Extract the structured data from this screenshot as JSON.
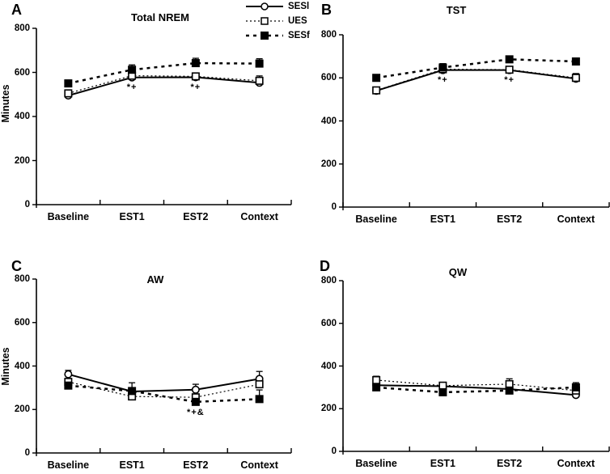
{
  "figure": {
    "background": "#ffffff",
    "ink_color": "#000000",
    "legend_position": "top-center"
  },
  "chart_data": [
    {
      "type": "line",
      "panel": "A",
      "title": "Total NREM",
      "ylabel": "Minutes",
      "ylim": [
        0,
        800
      ],
      "yticks": [
        0,
        200,
        400,
        600,
        800
      ],
      "categories": [
        "Baseline",
        "EST1",
        "EST2",
        "Context"
      ],
      "grid": false,
      "series": [
        {
          "name": "SESl",
          "marker": "open-circle",
          "line": "solid",
          "values": [
            495,
            577,
            578,
            553
          ],
          "errors": [
            10,
            10,
            8,
            18
          ]
        },
        {
          "name": "UES",
          "marker": "open-square",
          "line": "dotted",
          "values": [
            505,
            585,
            582,
            562
          ],
          "errors": [
            12,
            10,
            12,
            22
          ]
        },
        {
          "name": "SESf",
          "marker": "filled-square",
          "line": "dashed",
          "values": [
            550,
            612,
            642,
            640
          ],
          "errors": [
            15,
            22,
            22,
            22
          ]
        }
      ],
      "annotations": [
        {
          "text": "*+",
          "category": "EST1",
          "y": 533
        },
        {
          "text": "*+",
          "category": "EST2",
          "y": 533
        }
      ]
    },
    {
      "type": "line",
      "panel": "B",
      "title": "TST",
      "ylabel": "",
      "ylim": [
        0,
        800
      ],
      "yticks": [
        0,
        200,
        400,
        600,
        800
      ],
      "categories": [
        "Baseline",
        "EST1",
        "EST2",
        "Context"
      ],
      "grid": false,
      "series": [
        {
          "name": "SESl",
          "marker": "open-circle",
          "line": "solid",
          "values": [
            540,
            636,
            636,
            596
          ],
          "errors": [
            12,
            15,
            10,
            15
          ]
        },
        {
          "name": "UES",
          "marker": "open-square",
          "line": "dotted",
          "values": [
            542,
            640,
            638,
            600
          ],
          "errors": [
            15,
            18,
            12,
            20
          ]
        },
        {
          "name": "SESf",
          "marker": "filled-square",
          "line": "dashed",
          "values": [
            600,
            648,
            686,
            676
          ],
          "errors": [
            15,
            18,
            15,
            16
          ]
        }
      ],
      "annotations": [
        {
          "text": "*+",
          "category": "EST1",
          "y": 588
        },
        {
          "text": "*+",
          "category": "EST2",
          "y": 588
        }
      ]
    },
    {
      "type": "line",
      "panel": "C",
      "title": "AW",
      "ylabel": "Minutes",
      "ylim": [
        0,
        800
      ],
      "yticks": [
        0,
        200,
        400,
        600,
        800
      ],
      "categories": [
        "Baseline",
        "EST1",
        "EST2",
        "Context"
      ],
      "grid": false,
      "series": [
        {
          "name": "SESl",
          "marker": "open-circle",
          "line": "solid",
          "values": [
            362,
            283,
            291,
            341
          ],
          "errors": [
            18,
            12,
            25,
            34
          ]
        },
        {
          "name": "UES",
          "marker": "open-square",
          "line": "dotted",
          "values": [
            327,
            260,
            256,
            316
          ],
          "errors": [
            12,
            12,
            12,
            25
          ]
        },
        {
          "name": "SESf",
          "marker": "filled-square",
          "line": "dashed",
          "values": [
            310,
            285,
            235,
            248
          ],
          "errors": [
            15,
            38,
            20,
            42
          ]
        }
      ],
      "annotations": [
        {
          "text": "*+&",
          "category": "EST2",
          "y": 186
        }
      ]
    },
    {
      "type": "line",
      "panel": "D",
      "title": "QW",
      "ylabel": "",
      "ylim": [
        0,
        800
      ],
      "yticks": [
        0,
        200,
        400,
        600,
        800
      ],
      "categories": [
        "Baseline",
        "EST1",
        "EST2",
        "Context"
      ],
      "grid": false,
      "series": [
        {
          "name": "SESl",
          "marker": "open-circle",
          "line": "solid",
          "values": [
            310,
            305,
            292,
            264
          ],
          "errors": [
            12,
            12,
            12,
            12
          ]
        },
        {
          "name": "UES",
          "marker": "open-square",
          "line": "dotted",
          "values": [
            334,
            308,
            315,
            285
          ],
          "errors": [
            18,
            10,
            25,
            15
          ]
        },
        {
          "name": "SESf",
          "marker": "filled-square",
          "line": "dashed",
          "values": [
            300,
            277,
            285,
            300
          ],
          "errors": [
            12,
            12,
            15,
            22
          ]
        }
      ],
      "annotations": []
    }
  ]
}
